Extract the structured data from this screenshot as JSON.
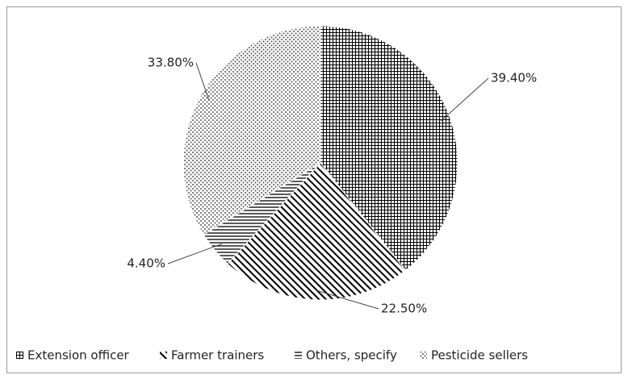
{
  "chart_data": {
    "type": "pie",
    "categories": [
      "Extension officer",
      "Farmer trainers",
      "Others, specify",
      "Pesticide sellers"
    ],
    "values": [
      39.4,
      22.5,
      4.4,
      33.8
    ],
    "value_labels": [
      "39.40%",
      "22.50%",
      "4.40%",
      "33.80%"
    ],
    "legend": "bottom"
  }
}
